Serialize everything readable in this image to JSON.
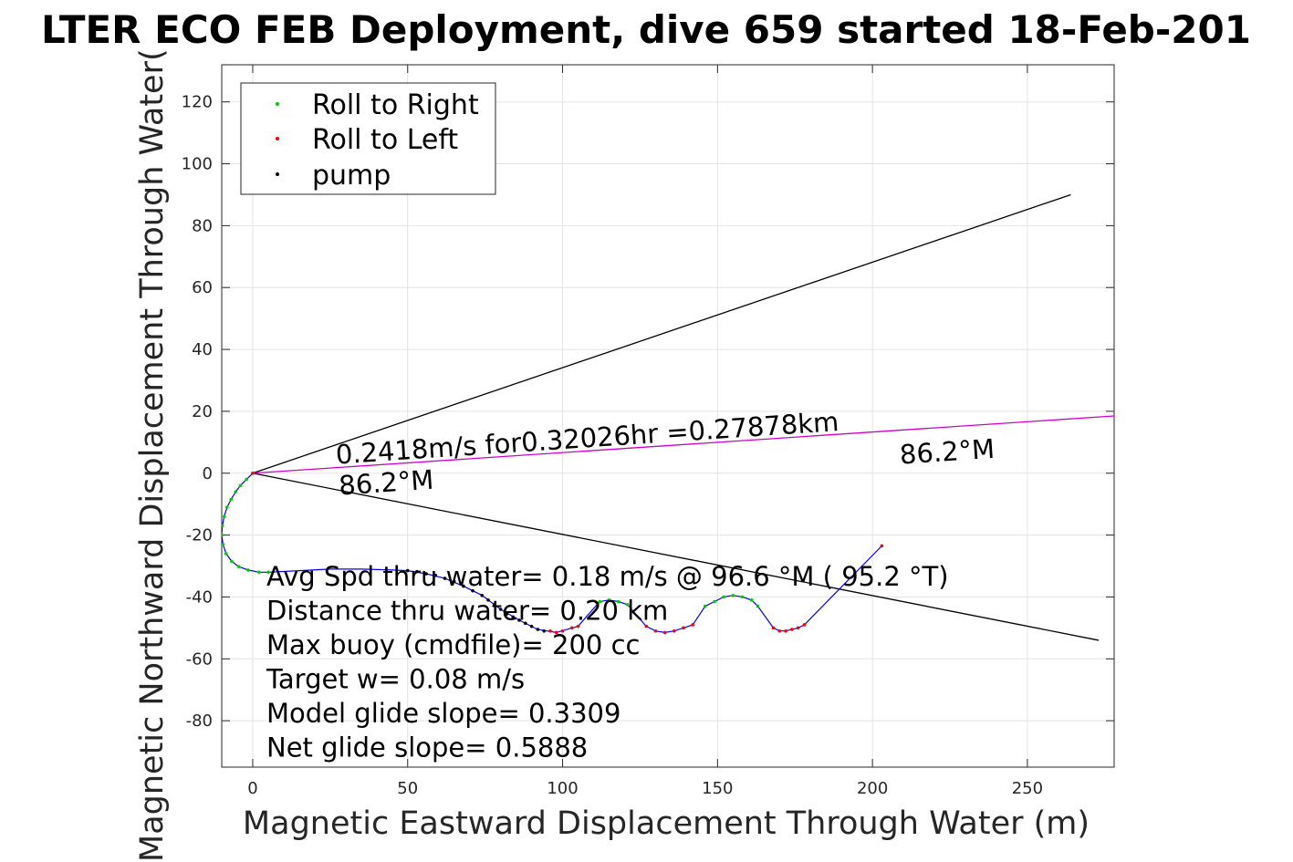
{
  "chart_data": {
    "type": "scatter",
    "title": "LTER ECO FEB Deployment, dive 659 started 18-Feb-201",
    "xlabel": "Magnetic Eastward Displacement Through Water (m)",
    "ylabel": "Magnetic Northward Displacement Through Water(",
    "xlim": [
      -10,
      278
    ],
    "ylim": [
      -95,
      132
    ],
    "xticks": [
      0,
      50,
      100,
      150,
      200,
      250
    ],
    "yticks": [
      -80,
      -60,
      -40,
      -20,
      0,
      20,
      40,
      60,
      80,
      100,
      120
    ],
    "grid": true,
    "legend_position": "top-left",
    "legend": [
      "Roll to Right",
      "Roll to Left",
      "pump"
    ],
    "series": [
      {
        "name": "Roll to Right",
        "color": "#00cc00",
        "points": [
          [
            0,
            0
          ],
          [
            -2,
            -2
          ],
          [
            -4,
            -4
          ],
          [
            -5.5,
            -6
          ],
          [
            -7,
            -8.5
          ],
          [
            -8.3,
            -11
          ],
          [
            -9.2,
            -14
          ],
          [
            -9.8,
            -17
          ],
          [
            -10,
            -20
          ],
          [
            -9.6,
            -23
          ],
          [
            -8.6,
            -26
          ],
          [
            -6.8,
            -28.5
          ],
          [
            -4.5,
            -30.2
          ],
          [
            -1.5,
            -31.3
          ],
          [
            2,
            -32
          ],
          [
            5,
            -32
          ],
          [
            112,
            -41.5
          ],
          [
            115,
            -41
          ],
          [
            118,
            -41.5
          ],
          [
            121,
            -42.5
          ],
          [
            146,
            -43
          ],
          [
            149,
            -41.5
          ],
          [
            152,
            -40
          ],
          [
            155,
            -39.5
          ],
          [
            158,
            -40
          ],
          [
            161,
            -41
          ],
          [
            163,
            -43
          ]
        ]
      },
      {
        "name": "Roll to Left",
        "color": "#ff0000",
        "points": [
          [
            0,
            0
          ],
          [
            96,
            -51
          ],
          [
            98,
            -51.5
          ],
          [
            100,
            -51
          ],
          [
            103,
            -50
          ],
          [
            105,
            -49.5
          ],
          [
            127,
            -49.5
          ],
          [
            130,
            -51
          ],
          [
            133,
            -51.5
          ],
          [
            136,
            -51
          ],
          [
            139,
            -50
          ],
          [
            142,
            -49
          ],
          [
            168,
            -50
          ],
          [
            170,
            -51
          ],
          [
            172,
            -51
          ],
          [
            174,
            -50.5
          ],
          [
            176,
            -50
          ],
          [
            178,
            -49
          ],
          [
            203,
            -23.5
          ]
        ]
      },
      {
        "name": "pump",
        "color": "#000000",
        "points": [
          [
            50,
            -31.5
          ],
          [
            53,
            -31.8
          ],
          [
            56,
            -32.5
          ],
          [
            59,
            -33
          ],
          [
            62,
            -34
          ],
          [
            65,
            -35
          ],
          [
            68,
            -36.5
          ],
          [
            71,
            -38
          ],
          [
            74,
            -39.5
          ],
          [
            76,
            -41
          ],
          [
            78,
            -42.5
          ],
          [
            80,
            -44
          ],
          [
            82,
            -45.5
          ],
          [
            84,
            -46.5
          ],
          [
            86,
            -47.5
          ],
          [
            88,
            -48.5
          ],
          [
            90,
            -49.5
          ],
          [
            92,
            -50.5
          ],
          [
            94,
            -51
          ]
        ]
      }
    ],
    "track": {
      "color": "#0000ff",
      "points": [
        [
          0,
          0
        ],
        [
          -2,
          -2
        ],
        [
          -4,
          -4
        ],
        [
          -5.5,
          -6
        ],
        [
          -7,
          -8.5
        ],
        [
          -8.3,
          -11
        ],
        [
          -9.2,
          -14
        ],
        [
          -9.8,
          -17
        ],
        [
          -10,
          -20
        ],
        [
          -9.6,
          -23
        ],
        [
          -8.6,
          -26
        ],
        [
          -6.8,
          -28.5
        ],
        [
          -4.5,
          -30.2
        ],
        [
          -1.5,
          -31.3
        ],
        [
          2,
          -32
        ],
        [
          5,
          -32
        ],
        [
          15,
          -31.5
        ],
        [
          25,
          -31
        ],
        [
          35,
          -31
        ],
        [
          45,
          -31.3
        ],
        [
          50,
          -31.5
        ],
        [
          56,
          -32.5
        ],
        [
          62,
          -34
        ],
        [
          68,
          -36.5
        ],
        [
          74,
          -39.5
        ],
        [
          80,
          -44
        ],
        [
          86,
          -47.5
        ],
        [
          92,
          -50.5
        ],
        [
          98,
          -51.5
        ],
        [
          103,
          -50
        ],
        [
          105,
          -49.5
        ],
        [
          108,
          -46
        ],
        [
          112,
          -41.5
        ],
        [
          115,
          -41
        ],
        [
          118,
          -41.5
        ],
        [
          121,
          -42.5
        ],
        [
          124,
          -46
        ],
        [
          127,
          -49.5
        ],
        [
          130,
          -51
        ],
        [
          133,
          -51.5
        ],
        [
          136,
          -51
        ],
        [
          139,
          -50
        ],
        [
          142,
          -49
        ],
        [
          146,
          -43
        ],
        [
          149,
          -41.5
        ],
        [
          152,
          -40
        ],
        [
          155,
          -39.5
        ],
        [
          158,
          -40
        ],
        [
          161,
          -41
        ],
        [
          163,
          -43
        ],
        [
          168,
          -50
        ],
        [
          170,
          -51
        ],
        [
          172,
          -51
        ],
        [
          174,
          -50.5
        ],
        [
          176,
          -50
        ],
        [
          178,
          -49
        ],
        [
          203,
          -23.5
        ]
      ]
    },
    "lines": [
      {
        "color": "#000000",
        "from": [
          0,
          0
        ],
        "to": [
          264,
          90
        ]
      },
      {
        "color": "#000000",
        "from": [
          0,
          0
        ],
        "to": [
          273,
          -54
        ]
      },
      {
        "color": "#cc00cc",
        "from": [
          0,
          0
        ],
        "to": [
          278,
          18.5
        ]
      }
    ],
    "annotations": [
      {
        "text": "0.2418m/s for0.32026hr =0.27878km",
        "x": 27,
        "y": 3,
        "rotate": -3.8
      },
      {
        "text": "86.2°M",
        "x": 28,
        "y": -7,
        "rotate": -3.8
      },
      {
        "text": "86.2°M",
        "x": 209,
        "y": 3,
        "rotate": -3.8
      }
    ],
    "stats": [
      "Avg Spd thru water=  0.18 m/s @  96.6 °M ( 95.2 °T)",
      "Distance thru water=  0.20 km",
      "Max buoy (cmdfile)= 200 cc",
      "Target w= 0.08 m/s",
      "Model glide slope= 0.3309",
      "Net glide slope= 0.5888"
    ]
  }
}
